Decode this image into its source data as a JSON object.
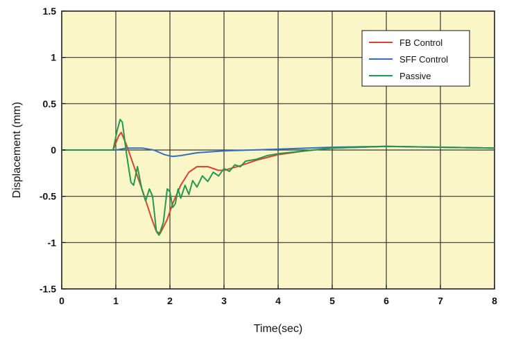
{
  "chart_data": {
    "type": "line",
    "title": "",
    "xlabel": "Time(sec)",
    "ylabel": "Displacement (mm)",
    "xlim": [
      0,
      8
    ],
    "ylim": [
      -1.5,
      1.5
    ],
    "x_ticks": [
      0,
      1,
      2,
      3,
      4,
      5,
      6,
      7,
      8
    ],
    "y_ticks": [
      1.5,
      1,
      0.5,
      0,
      -0.5,
      -1,
      -1.5
    ],
    "x_tick_labels": [
      "0",
      "1",
      "2",
      "3",
      "4",
      "5",
      "6",
      "7",
      "8"
    ],
    "y_tick_labels": [
      "1.5",
      "1",
      "0.5",
      "0",
      "-0.5",
      "-1",
      "-1.5"
    ],
    "grid": true,
    "legend_position": "top-right",
    "plot_background": "#fbf6c8",
    "series": [
      {
        "name": "FB Control",
        "color": "#e0402c",
        "points": [
          [
            0,
            0
          ],
          [
            0.95,
            0
          ],
          [
            1.05,
            0.15
          ],
          [
            1.1,
            0.19
          ],
          [
            1.2,
            0.05
          ],
          [
            1.35,
            -0.2
          ],
          [
            1.5,
            -0.45
          ],
          [
            1.65,
            -0.72
          ],
          [
            1.75,
            -0.88
          ],
          [
            1.82,
            -0.9
          ],
          [
            1.95,
            -0.75
          ],
          [
            2.05,
            -0.58
          ],
          [
            2.2,
            -0.38
          ],
          [
            2.35,
            -0.24
          ],
          [
            2.5,
            -0.18
          ],
          [
            2.7,
            -0.18
          ],
          [
            2.9,
            -0.22
          ],
          [
            3.0,
            -0.22
          ],
          [
            3.3,
            -0.17
          ],
          [
            3.6,
            -0.11
          ],
          [
            4.0,
            -0.05
          ],
          [
            4.5,
            -0.01
          ],
          [
            5.0,
            0.02
          ],
          [
            6.0,
            0.04
          ],
          [
            7.0,
            0.03
          ],
          [
            8.0,
            0.02
          ]
        ]
      },
      {
        "name": "SFF Control",
        "color": "#2f6fc8",
        "points": [
          [
            0,
            0
          ],
          [
            1.0,
            0
          ],
          [
            1.2,
            0.02
          ],
          [
            1.5,
            0.02
          ],
          [
            1.7,
            0.0
          ],
          [
            1.9,
            -0.05
          ],
          [
            2.05,
            -0.07
          ],
          [
            2.2,
            -0.06
          ],
          [
            2.5,
            -0.03
          ],
          [
            3.0,
            -0.01
          ],
          [
            4.0,
            0.01
          ],
          [
            5.0,
            0.03
          ],
          [
            6.0,
            0.04
          ],
          [
            7.0,
            0.03
          ],
          [
            8.0,
            0.02
          ]
        ]
      },
      {
        "name": "Passive",
        "color": "#1f9a4a",
        "points": [
          [
            0,
            0
          ],
          [
            0.95,
            0
          ],
          [
            1.02,
            0.2
          ],
          [
            1.08,
            0.33
          ],
          [
            1.12,
            0.3
          ],
          [
            1.2,
            -0.05
          ],
          [
            1.28,
            -0.35
          ],
          [
            1.33,
            -0.38
          ],
          [
            1.4,
            -0.18
          ],
          [
            1.48,
            -0.42
          ],
          [
            1.55,
            -0.55
          ],
          [
            1.62,
            -0.42
          ],
          [
            1.68,
            -0.5
          ],
          [
            1.75,
            -0.88
          ],
          [
            1.8,
            -0.92
          ],
          [
            1.88,
            -0.78
          ],
          [
            1.95,
            -0.42
          ],
          [
            2.0,
            -0.45
          ],
          [
            2.05,
            -0.62
          ],
          [
            2.1,
            -0.58
          ],
          [
            2.15,
            -0.42
          ],
          [
            2.2,
            -0.52
          ],
          [
            2.28,
            -0.38
          ],
          [
            2.35,
            -0.48
          ],
          [
            2.42,
            -0.33
          ],
          [
            2.5,
            -0.4
          ],
          [
            2.6,
            -0.28
          ],
          [
            2.7,
            -0.34
          ],
          [
            2.8,
            -0.24
          ],
          [
            2.9,
            -0.28
          ],
          [
            3.0,
            -0.2
          ],
          [
            3.1,
            -0.23
          ],
          [
            3.2,
            -0.16
          ],
          [
            3.3,
            -0.18
          ],
          [
            3.4,
            -0.12
          ],
          [
            3.6,
            -0.1
          ],
          [
            3.8,
            -0.06
          ],
          [
            4.0,
            -0.04
          ],
          [
            4.5,
            -0.01
          ],
          [
            5.0,
            0.02
          ],
          [
            6.0,
            0.04
          ],
          [
            7.0,
            0.03
          ],
          [
            8.0,
            0.02
          ]
        ]
      }
    ]
  }
}
